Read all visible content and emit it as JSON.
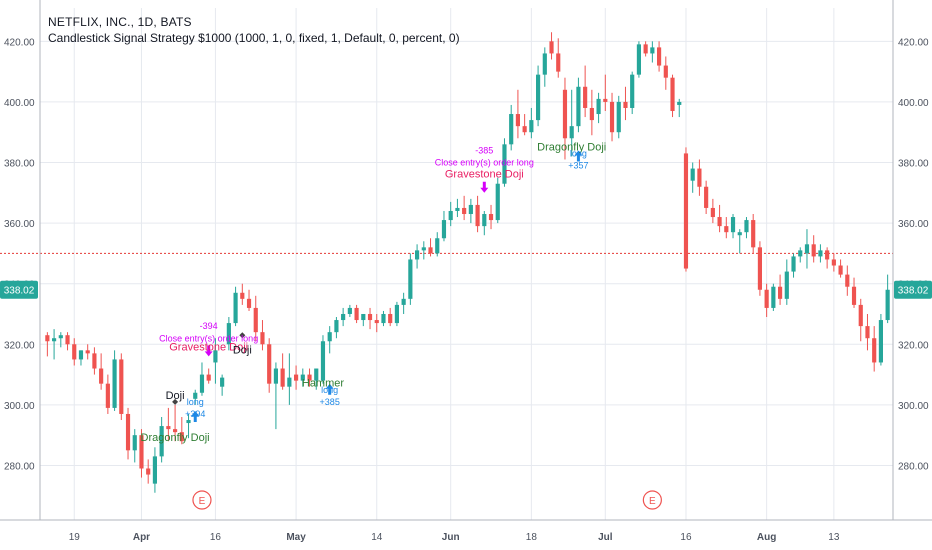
{
  "header": {
    "title": "NETFLIX, INC., 1D, BATS",
    "strategy": "Candlestick Signal Strategy $1000 (1000, 1, 0, fixed, 1, Default, 0, percent, 0)"
  },
  "current_price_label": "338.02",
  "colors": {
    "up": "#26a69a",
    "down": "#ef5350",
    "grid": "#e6e9ef",
    "axis_text": "#4c525e",
    "ref_line": "#e53935",
    "price_tag": "#26a69a"
  },
  "chart_data": {
    "type": "candlestick",
    "y_axis": {
      "min": 262,
      "max": 431,
      "ticks": [
        "420.00",
        "400.00",
        "380.00",
        "360.00",
        "340.00",
        "320.00",
        "300.00",
        "280.00"
      ],
      "tick_values": [
        420,
        400,
        380,
        360,
        340,
        320,
        300,
        280
      ]
    },
    "x_axis": {
      "labels": [
        "19",
        "Apr",
        "16",
        "May",
        "14",
        "Jun",
        "18",
        "Jul",
        "16",
        "Aug",
        "13"
      ],
      "label_bars": [
        4,
        14,
        25,
        37,
        49,
        60,
        72,
        83,
        95,
        107,
        117
      ]
    },
    "reference_line": 350,
    "last_price": 338.02,
    "candles": [
      {
        "o": 323,
        "h": 324,
        "l": 316,
        "c": 321
      },
      {
        "o": 321,
        "h": 325,
        "l": 315,
        "c": 322
      },
      {
        "o": 322,
        "h": 324,
        "l": 319,
        "c": 323
      },
      {
        "o": 323,
        "h": 324,
        "l": 318,
        "c": 320
      },
      {
        "o": 320,
        "h": 322,
        "l": 313,
        "c": 315
      },
      {
        "o": 315,
        "h": 318,
        "l": 313,
        "c": 318
      },
      {
        "o": 318,
        "h": 320,
        "l": 315,
        "c": 317
      },
      {
        "o": 317,
        "h": 319,
        "l": 310,
        "c": 312
      },
      {
        "o": 312,
        "h": 317,
        "l": 305,
        "c": 307
      },
      {
        "o": 307,
        "h": 310,
        "l": 297,
        "c": 299
      },
      {
        "o": 299,
        "h": 318,
        "l": 298,
        "c": 315
      },
      {
        "o": 315,
        "h": 317,
        "l": 295,
        "c": 297
      },
      {
        "o": 297,
        "h": 299,
        "l": 282,
        "c": 285
      },
      {
        "o": 285,
        "h": 292,
        "l": 281,
        "c": 290
      },
      {
        "o": 290,
        "h": 292,
        "l": 276,
        "c": 279
      },
      {
        "o": 279,
        "h": 282,
        "l": 274,
        "c": 277
      },
      {
        "o": 274,
        "h": 286,
        "l": 271,
        "c": 283
      },
      {
        "o": 283,
        "h": 296,
        "l": 281,
        "c": 293
      },
      {
        "o": 293,
        "h": 299,
        "l": 288,
        "c": 292
      },
      {
        "o": 292,
        "h": 300,
        "l": 288,
        "c": 291
      },
      {
        "o": 291,
        "h": 296,
        "l": 287,
        "c": 288
      },
      {
        "o": 294,
        "h": 297,
        "l": 289,
        "c": 295
      },
      {
        "o": 302,
        "h": 305,
        "l": 300,
        "c": 304
      },
      {
        "o": 304,
        "h": 314,
        "l": 303,
        "c": 310
      },
      {
        "o": 310,
        "h": 312,
        "l": 307,
        "c": 308
      },
      {
        "o": 314,
        "h": 322,
        "l": 307,
        "c": 318
      },
      {
        "o": 306,
        "h": 310,
        "l": 303,
        "c": 309
      },
      {
        "o": 320,
        "h": 329,
        "l": 318,
        "c": 327
      },
      {
        "o": 327,
        "h": 339,
        "l": 326,
        "c": 337
      },
      {
        "o": 337,
        "h": 340,
        "l": 333,
        "c": 335
      },
      {
        "o": 335,
        "h": 338,
        "l": 331,
        "c": 332
      },
      {
        "o": 332,
        "h": 336,
        "l": 321,
        "c": 324
      },
      {
        "o": 324,
        "h": 328,
        "l": 318,
        "c": 320
      },
      {
        "o": 320,
        "h": 322,
        "l": 304,
        "c": 307
      },
      {
        "o": 307,
        "h": 314,
        "l": 292,
        "c": 312
      },
      {
        "o": 312,
        "h": 317,
        "l": 305,
        "c": 306
      },
      {
        "o": 306,
        "h": 317,
        "l": 300,
        "c": 309
      },
      {
        "o": 310,
        "h": 313,
        "l": 305,
        "c": 308
      },
      {
        "o": 308,
        "h": 312,
        "l": 306,
        "c": 310
      },
      {
        "o": 310,
        "h": 312,
        "l": 306,
        "c": 308
      },
      {
        "o": 308,
        "h": 312,
        "l": 305,
        "c": 312
      },
      {
        "o": 308,
        "h": 323,
        "l": 307,
        "c": 321
      },
      {
        "o": 321,
        "h": 326,
        "l": 317,
        "c": 324
      },
      {
        "o": 324,
        "h": 329,
        "l": 322,
        "c": 328
      },
      {
        "o": 328,
        "h": 332,
        "l": 326,
        "c": 330
      },
      {
        "o": 330,
        "h": 333,
        "l": 329,
        "c": 332
      },
      {
        "o": 332,
        "h": 333,
        "l": 327,
        "c": 328
      },
      {
        "o": 328,
        "h": 330,
        "l": 326,
        "c": 330
      },
      {
        "o": 330,
        "h": 332,
        "l": 325,
        "c": 328
      },
      {
        "o": 328,
        "h": 330,
        "l": 324,
        "c": 327
      },
      {
        "o": 327,
        "h": 331,
        "l": 326,
        "c": 330
      },
      {
        "o": 330,
        "h": 332,
        "l": 326,
        "c": 327
      },
      {
        "o": 327,
        "h": 334,
        "l": 326,
        "c": 333
      },
      {
        "o": 333,
        "h": 337,
        "l": 330,
        "c": 335
      },
      {
        "o": 335,
        "h": 350,
        "l": 333,
        "c": 348
      },
      {
        "o": 348,
        "h": 353,
        "l": 345,
        "c": 351
      },
      {
        "o": 351,
        "h": 354,
        "l": 348,
        "c": 352
      },
      {
        "o": 352,
        "h": 355,
        "l": 349,
        "c": 350
      },
      {
        "o": 350,
        "h": 357,
        "l": 349,
        "c": 355
      },
      {
        "o": 355,
        "h": 364,
        "l": 354,
        "c": 361
      },
      {
        "o": 361,
        "h": 367,
        "l": 359,
        "c": 364
      },
      {
        "o": 364,
        "h": 368,
        "l": 362,
        "c": 365
      },
      {
        "o": 365,
        "h": 369,
        "l": 361,
        "c": 363
      },
      {
        "o": 363,
        "h": 368,
        "l": 360,
        "c": 366
      },
      {
        "o": 366,
        "h": 369,
        "l": 357,
        "c": 359
      },
      {
        "o": 359,
        "h": 364,
        "l": 356,
        "c": 363
      },
      {
        "o": 363,
        "h": 366,
        "l": 358,
        "c": 361
      },
      {
        "o": 361,
        "h": 375,
        "l": 360,
        "c": 373
      },
      {
        "o": 373,
        "h": 388,
        "l": 372,
        "c": 386
      },
      {
        "o": 386,
        "h": 399,
        "l": 384,
        "c": 396
      },
      {
        "o": 396,
        "h": 404,
        "l": 388,
        "c": 392
      },
      {
        "o": 392,
        "h": 396,
        "l": 389,
        "c": 390
      },
      {
        "o": 390,
        "h": 398,
        "l": 388,
        "c": 394
      },
      {
        "o": 394,
        "h": 412,
        "l": 392,
        "c": 409
      },
      {
        "o": 409,
        "h": 418,
        "l": 405,
        "c": 416
      },
      {
        "o": 420,
        "h": 423,
        "l": 414,
        "c": 416
      },
      {
        "o": 416,
        "h": 421,
        "l": 408,
        "c": 410
      },
      {
        "o": 404,
        "h": 408,
        "l": 381,
        "c": 388
      },
      {
        "o": 388,
        "h": 404,
        "l": 382,
        "c": 392
      },
      {
        "o": 392,
        "h": 408,
        "l": 390,
        "c": 405
      },
      {
        "o": 405,
        "h": 412,
        "l": 395,
        "c": 398
      },
      {
        "o": 398,
        "h": 404,
        "l": 389,
        "c": 394
      },
      {
        "o": 396,
        "h": 403,
        "l": 393,
        "c": 401
      },
      {
        "o": 401,
        "h": 409,
        "l": 397,
        "c": 400
      },
      {
        "o": 400,
        "h": 403,
        "l": 387,
        "c": 390
      },
      {
        "o": 390,
        "h": 402,
        "l": 388,
        "c": 400
      },
      {
        "o": 400,
        "h": 405,
        "l": 394,
        "c": 398
      },
      {
        "o": 398,
        "h": 410,
        "l": 396,
        "c": 409
      },
      {
        "o": 409,
        "h": 420,
        "l": 408,
        "c": 419
      },
      {
        "o": 419,
        "h": 420,
        "l": 415,
        "c": 416
      },
      {
        "o": 416,
        "h": 420,
        "l": 413,
        "c": 418
      },
      {
        "o": 418,
        "h": 420,
        "l": 410,
        "c": 412
      },
      {
        "o": 412,
        "h": 415,
        "l": 404,
        "c": 408
      },
      {
        "o": 408,
        "h": 409,
        "l": 395,
        "c": 397
      },
      {
        "o": 399,
        "h": 401,
        "l": 395,
        "c": 400
      },
      {
        "o": 383,
        "h": 385,
        "l": 344,
        "c": 345
      },
      {
        "o": 374,
        "h": 380,
        "l": 370,
        "c": 378
      },
      {
        "o": 378,
        "h": 381,
        "l": 369,
        "c": 372
      },
      {
        "o": 372,
        "h": 374,
        "l": 363,
        "c": 365
      },
      {
        "o": 365,
        "h": 368,
        "l": 360,
        "c": 362
      },
      {
        "o": 362,
        "h": 366,
        "l": 357,
        "c": 359
      },
      {
        "o": 359,
        "h": 362,
        "l": 355,
        "c": 357
      },
      {
        "o": 357,
        "h": 363,
        "l": 355,
        "c": 362
      },
      {
        "o": 356,
        "h": 358,
        "l": 350,
        "c": 357
      },
      {
        "o": 357,
        "h": 362,
        "l": 355,
        "c": 361
      },
      {
        "o": 361,
        "h": 363,
        "l": 350,
        "c": 352
      },
      {
        "o": 352,
        "h": 354,
        "l": 336,
        "c": 338
      },
      {
        "o": 338,
        "h": 340,
        "l": 329,
        "c": 332
      },
      {
        "o": 332,
        "h": 340,
        "l": 331,
        "c": 339
      },
      {
        "o": 339,
        "h": 343,
        "l": 333,
        "c": 335
      },
      {
        "o": 335,
        "h": 348,
        "l": 333,
        "c": 344
      },
      {
        "o": 344,
        "h": 350,
        "l": 342,
        "c": 349
      },
      {
        "o": 349,
        "h": 352,
        "l": 347,
        "c": 351
      },
      {
        "o": 350,
        "h": 358,
        "l": 345,
        "c": 353
      },
      {
        "o": 353,
        "h": 356,
        "l": 347,
        "c": 349
      },
      {
        "o": 349,
        "h": 353,
        "l": 347,
        "c": 351
      },
      {
        "o": 351,
        "h": 352,
        "l": 345,
        "c": 348
      },
      {
        "o": 348,
        "h": 350,
        "l": 344,
        "c": 346
      },
      {
        "o": 346,
        "h": 348,
        "l": 342,
        "c": 343
      },
      {
        "o": 343,
        "h": 346,
        "l": 336,
        "c": 339
      },
      {
        "o": 339,
        "h": 342,
        "l": 332,
        "c": 333
      },
      {
        "o": 333,
        "h": 335,
        "l": 321,
        "c": 326
      },
      {
        "o": 326,
        "h": 330,
        "l": 318,
        "c": 322
      },
      {
        "o": 322,
        "h": 326,
        "l": 311,
        "c": 314
      },
      {
        "o": 314,
        "h": 330,
        "l": 313,
        "c": 328
      },
      {
        "o": 328,
        "h": 343,
        "l": 327,
        "c": 338
      }
    ],
    "annotations": [
      {
        "bar": 19,
        "price": 302,
        "text": "Doji",
        "color": "#131722",
        "place": "above"
      },
      {
        "bar": 19,
        "price": 288,
        "text": "Dragonfly Doji",
        "color": "#2e7d32",
        "place": "below"
      },
      {
        "bar": 22,
        "price": 300,
        "text": "long",
        "color": "#1e88e5",
        "place": "below"
      },
      {
        "bar": 22,
        "price": 296,
        "text": "+394",
        "color": "#1e88e5",
        "place": "below"
      },
      {
        "bar": 24,
        "price": 325,
        "text": "-394",
        "color": "#d500f9",
        "place": "above"
      },
      {
        "bar": 24,
        "price": 321,
        "text": "Close entry(s) order long",
        "color": "#d500f9",
        "place": "above"
      },
      {
        "bar": 24,
        "price": 318,
        "text": "Gravestone Doji",
        "color": "#e91e63",
        "place": "above"
      },
      {
        "bar": 29,
        "price": 317,
        "text": "Doji",
        "color": "#131722",
        "place": "above"
      },
      {
        "bar": 41,
        "price": 306,
        "text": "Hammer",
        "color": "#2e7d32",
        "place": "below"
      },
      {
        "bar": 42,
        "price": 304,
        "text": "long",
        "color": "#1e88e5",
        "place": "below"
      },
      {
        "bar": 42,
        "price": 300,
        "text": "+385",
        "color": "#1e88e5",
        "place": "below"
      },
      {
        "bar": 65,
        "price": 383,
        "text": "-385",
        "color": "#d500f9",
        "place": "above"
      },
      {
        "bar": 65,
        "price": 379,
        "text": "Close entry(s) order long",
        "color": "#d500f9",
        "place": "above"
      },
      {
        "bar": 65,
        "price": 375,
        "text": "Gravestone Doji",
        "color": "#e91e63",
        "place": "above"
      },
      {
        "bar": 78,
        "price": 384,
        "text": "Dragonfly Doji",
        "color": "#2e7d32",
        "place": "below"
      },
      {
        "bar": 79,
        "price": 382,
        "text": "long",
        "color": "#1e88e5",
        "place": "below"
      },
      {
        "bar": 79,
        "price": 378,
        "text": "+357",
        "color": "#1e88e5",
        "place": "below"
      }
    ],
    "markers": [
      {
        "bar": 19,
        "price": 301,
        "type": "diamond",
        "color": "#424242"
      },
      {
        "bar": 22,
        "price": 296,
        "type": "arrow-up",
        "color": "#1e88e5"
      },
      {
        "bar": 24,
        "price": 318,
        "type": "arrow-down",
        "color": "#d500f9"
      },
      {
        "bar": 29,
        "price": 323,
        "type": "diamond",
        "color": "#424242"
      },
      {
        "bar": 42,
        "price": 305,
        "type": "arrow-up",
        "color": "#1e88e5"
      },
      {
        "bar": 65,
        "price": 372,
        "type": "arrow-down",
        "color": "#d500f9"
      },
      {
        "bar": 79,
        "price": 382,
        "type": "arrow-up",
        "color": "#1e88e5"
      }
    ],
    "earnings": [
      {
        "bar": 23,
        "label": "E"
      },
      {
        "bar": 90,
        "label": "E"
      }
    ]
  }
}
